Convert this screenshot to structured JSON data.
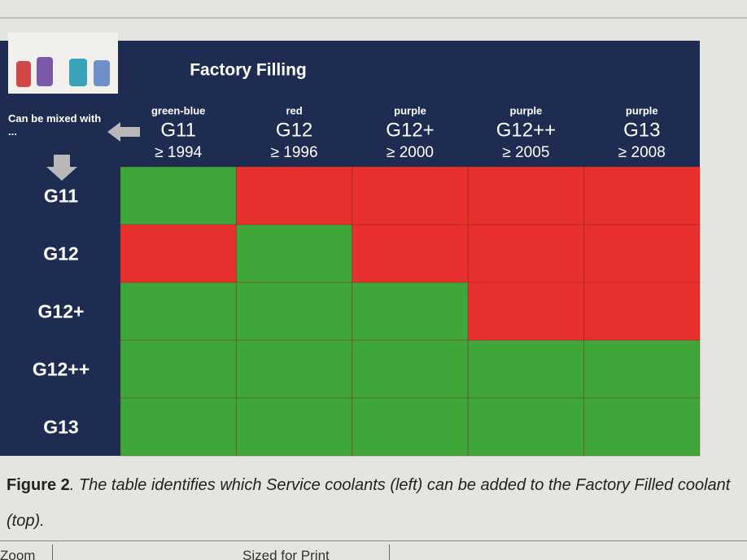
{
  "header": {
    "title": "Factory Filling",
    "corner": "Can be mixed with ..."
  },
  "columns": [
    {
      "color": "green-blue",
      "code": "G11",
      "year": "≥ 1994"
    },
    {
      "color": "red",
      "code": "G12",
      "year": "≥ 1996"
    },
    {
      "color": "purple",
      "code": "G12+",
      "year": "≥ 2000"
    },
    {
      "color": "purple",
      "code": "G12++",
      "year": "≥ 2005"
    },
    {
      "color": "purple",
      "code": "G13",
      "year": "≥ 2008"
    }
  ],
  "rows": [
    "G11",
    "G12",
    "G12+",
    "G12++",
    "G13"
  ],
  "cell_colors": [
    [
      "#3fa63a",
      "#e8312e",
      "#e8312e",
      "#e8312e",
      "#e8312e"
    ],
    [
      "#e8312e",
      "#3fa63a",
      "#e8312e",
      "#e8312e",
      "#e8312e"
    ],
    [
      "#3fa63a",
      "#3fa63a",
      "#3fa63a",
      "#e8312e",
      "#e8312e"
    ],
    [
      "#3fa63a",
      "#3fa63a",
      "#3fa63a",
      "#3fa63a",
      "#3fa63a"
    ],
    [
      "#3fa63a",
      "#3fa63a",
      "#3fa63a",
      "#3fa63a",
      "#3fa63a"
    ]
  ],
  "caption": {
    "label": "Figure 2",
    "text": ". The table identifies which Service coolants (left) can be added to the Factory Filled coolant (top)."
  },
  "footer": {
    "left": "Zoom",
    "middle": "Sized for Print"
  }
}
